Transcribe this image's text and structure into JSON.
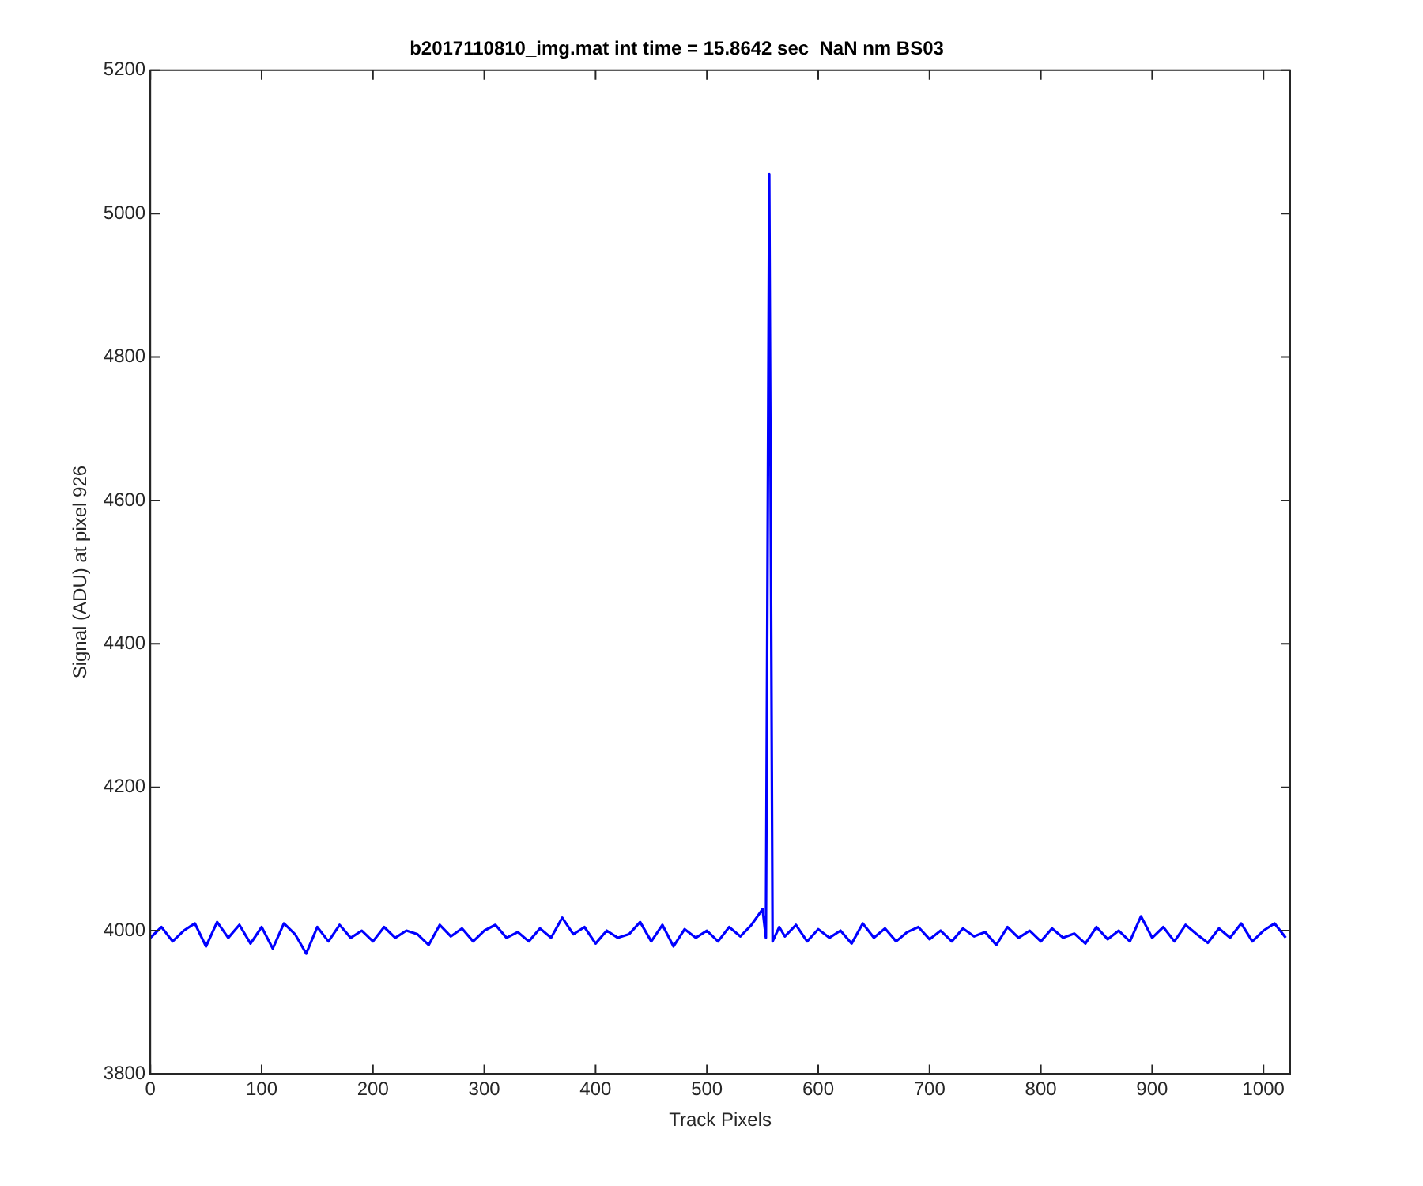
{
  "chart_data": {
    "type": "line",
    "title": "b2017110810_img.mat int time = 15.8642 sec  NaN nm BS03",
    "xlabel": "Track Pixels",
    "ylabel": "Signal (ADU) at pixel 926",
    "xlim": [
      0,
      1024
    ],
    "xticks": [
      0,
      100,
      200,
      300,
      400,
      500,
      600,
      700,
      800,
      900,
      1000
    ],
    "ylim": [
      3800,
      5200
    ],
    "yticks": [
      3800,
      4000,
      4200,
      4400,
      4600,
      4800,
      5000,
      5200
    ],
    "grid": false,
    "legend": false,
    "marker": "none",
    "line_style": "solid",
    "series": [
      {
        "color": "#0000ff",
        "x": [
          0,
          10,
          20,
          30,
          40,
          50,
          60,
          70,
          80,
          90,
          100,
          110,
          120,
          130,
          140,
          150,
          160,
          170,
          180,
          190,
          200,
          210,
          220,
          230,
          240,
          250,
          260,
          270,
          280,
          290,
          300,
          310,
          320,
          330,
          340,
          350,
          360,
          370,
          380,
          390,
          400,
          410,
          420,
          430,
          440,
          450,
          460,
          470,
          480,
          490,
          500,
          510,
          520,
          530,
          540,
          550,
          553,
          556,
          559,
          565,
          570,
          580,
          590,
          600,
          610,
          620,
          630,
          640,
          650,
          660,
          670,
          680,
          690,
          700,
          710,
          720,
          730,
          740,
          750,
          760,
          770,
          780,
          790,
          800,
          810,
          820,
          830,
          840,
          850,
          860,
          870,
          880,
          890,
          900,
          910,
          920,
          930,
          940,
          950,
          960,
          970,
          980,
          990,
          1000,
          1010,
          1020
        ],
        "values": [
          3990,
          4005,
          3985,
          4000,
          4010,
          3978,
          4012,
          3990,
          4008,
          3982,
          4005,
          3975,
          4010,
          3995,
          3968,
          4005,
          3985,
          4008,
          3990,
          4000,
          3985,
          4005,
          3990,
          4000,
          3995,
          3980,
          4008,
          3992,
          4003,
          3985,
          4000,
          4008,
          3990,
          3998,
          3985,
          4003,
          3990,
          4018,
          3995,
          4005,
          3982,
          4000,
          3990,
          3995,
          4012,
          3985,
          4008,
          3978,
          4002,
          3990,
          4000,
          3985,
          4005,
          3992,
          4008,
          4030,
          3990,
          5055,
          3985,
          4005,
          3992,
          4008,
          3985,
          4002,
          3990,
          4000,
          3982,
          4010,
          3990,
          4003,
          3985,
          3998,
          4005,
          3988,
          4000,
          3985,
          4003,
          3992,
          3998,
          3980,
          4005,
          3990,
          4000,
          3985,
          4003,
          3990,
          3996,
          3982,
          4005,
          3988,
          4000,
          3985,
          4020,
          3990,
          4005,
          3985,
          4008,
          3995,
          3983,
          4003,
          3990,
          4010,
          3985,
          4000,
          4010,
          3990
        ]
      }
    ]
  }
}
